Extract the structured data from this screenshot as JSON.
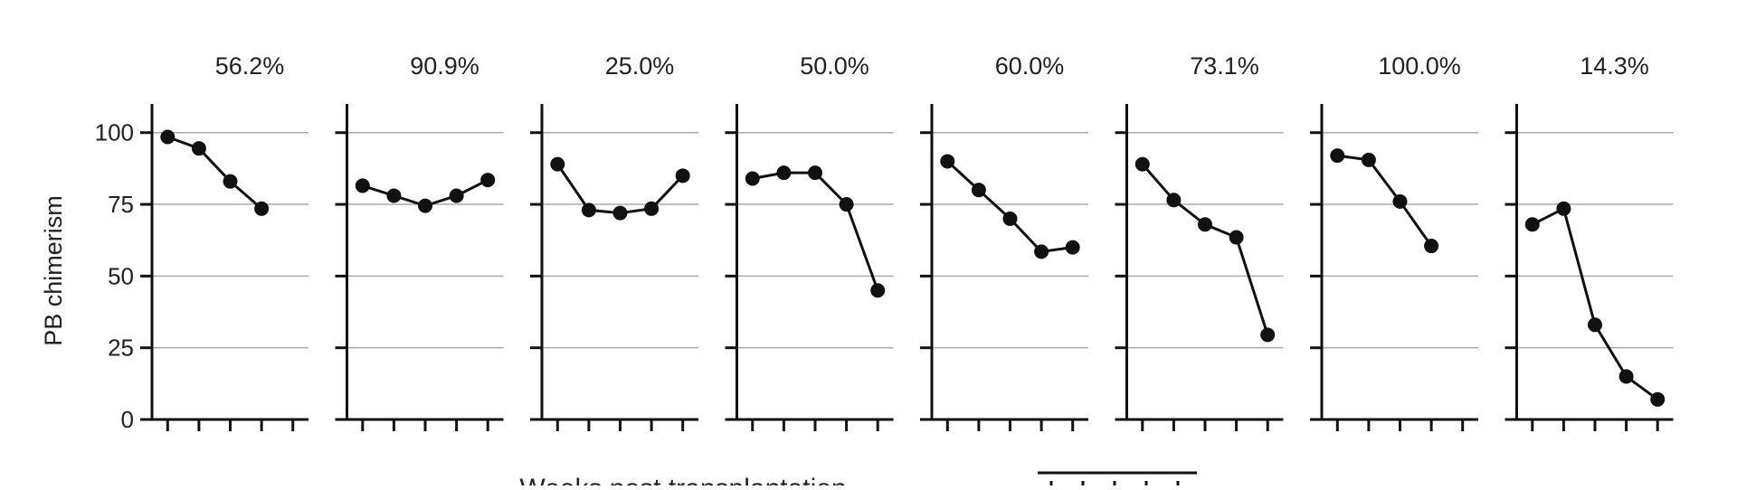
{
  "chart_data": {
    "type": "line",
    "ylabel": "PB chimerism",
    "xlabel": "Weeks post transplantation",
    "ylim": [
      0,
      110
    ],
    "yticks": [
      0,
      25,
      50,
      75,
      100
    ],
    "xlim": [
      0.5,
      5.5
    ],
    "xticks": [
      1,
      2,
      3,
      4,
      5
    ],
    "grid": "horizontal",
    "colors": {
      "line": "#111111",
      "grid": "#aaaaaa",
      "axis": "#111111"
    },
    "panels": [
      {
        "title": "56.2%",
        "x": [
          1,
          2,
          3,
          4
        ],
        "y": [
          98.5,
          94.5,
          83,
          73.5
        ]
      },
      {
        "title": "90.9%",
        "x": [
          1,
          2,
          3,
          4,
          5
        ],
        "y": [
          81.5,
          78,
          74.5,
          78,
          83.5
        ]
      },
      {
        "title": "25.0%",
        "x": [
          1,
          2,
          3,
          4,
          5
        ],
        "y": [
          89,
          73,
          72,
          73.5,
          85
        ]
      },
      {
        "title": "50.0%",
        "x": [
          1,
          2,
          3,
          4,
          5
        ],
        "y": [
          84,
          86,
          86,
          75,
          45
        ]
      },
      {
        "title": "60.0%",
        "x": [
          1,
          2,
          3,
          4,
          5
        ],
        "y": [
          90,
          80,
          70,
          58.5,
          60
        ]
      },
      {
        "title": "73.1%",
        "x": [
          1,
          2,
          3,
          4,
          5
        ],
        "y": [
          89,
          76.5,
          68,
          63.5,
          29.5
        ]
      },
      {
        "title": "100.0%",
        "x": [
          1,
          2,
          3,
          4
        ],
        "y": [
          92,
          90.5,
          76,
          60.5
        ]
      },
      {
        "title": "14.3%",
        "x": [
          1,
          2,
          3,
          4,
          5
        ],
        "y": [
          68,
          73.5,
          33,
          15,
          7
        ]
      }
    ]
  }
}
